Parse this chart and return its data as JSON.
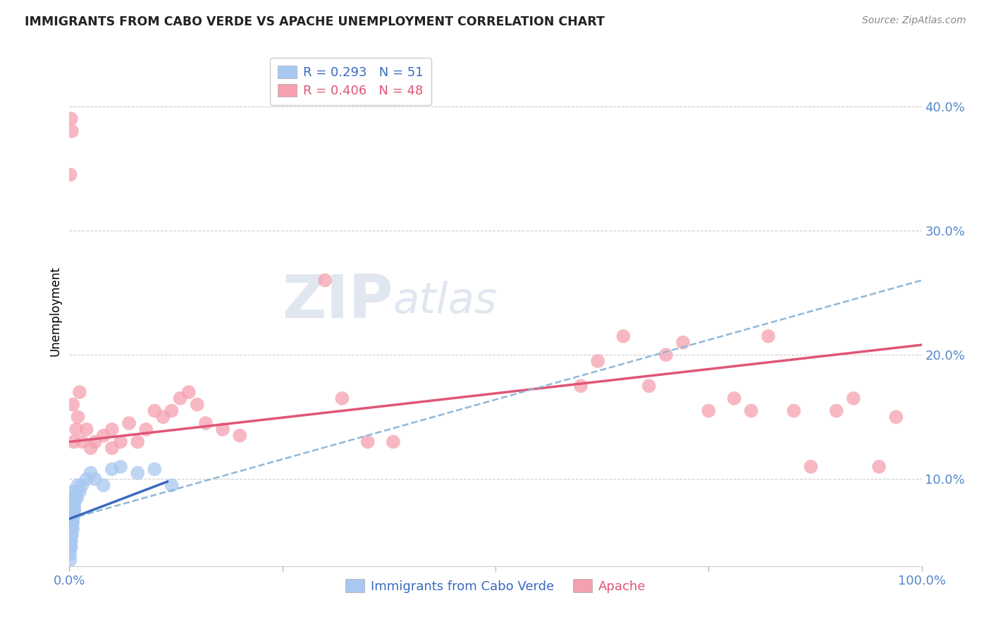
{
  "title": "IMMIGRANTS FROM CABO VERDE VS APACHE UNEMPLOYMENT CORRELATION CHART",
  "source": "Source: ZipAtlas.com",
  "ylabel": "Unemployment",
  "xlim": [
    0.0,
    1.0
  ],
  "ylim": [
    0.03,
    0.44
  ],
  "xticks": [
    0.0,
    0.25,
    0.5,
    0.75,
    1.0
  ],
  "xticklabels": [
    "0.0%",
    "",
    "",
    "",
    "100.0%"
  ],
  "yticks": [
    0.1,
    0.2,
    0.3,
    0.4
  ],
  "yticklabels": [
    "10.0%",
    "20.0%",
    "30.0%",
    "40.0%"
  ],
  "legend_line1": "R = 0.293   N = 51",
  "legend_line2": "R = 0.406   N = 48",
  "blue_color": "#a8c8f0",
  "pink_color": "#f5a0b0",
  "blue_line_color": "#3a6abf",
  "pink_line_color": "#e05575",
  "dashed_line_color": "#90b8d8",
  "watermark_zip": "ZIP",
  "watermark_atlas": "atlas",
  "blue_x": [
    0.001,
    0.001,
    0.001,
    0.001,
    0.001,
    0.001,
    0.001,
    0.001,
    0.001,
    0.001,
    0.002,
    0.002,
    0.002,
    0.002,
    0.002,
    0.002,
    0.002,
    0.002,
    0.002,
    0.003,
    0.003,
    0.003,
    0.003,
    0.003,
    0.003,
    0.003,
    0.004,
    0.004,
    0.004,
    0.004,
    0.004,
    0.005,
    0.005,
    0.005,
    0.006,
    0.006,
    0.007,
    0.008,
    0.009,
    0.01,
    0.012,
    0.015,
    0.02,
    0.025,
    0.03,
    0.04,
    0.05,
    0.06,
    0.08,
    0.1,
    0.12
  ],
  "blue_y": [
    0.055,
    0.06,
    0.065,
    0.07,
    0.075,
    0.05,
    0.045,
    0.04,
    0.035,
    0.08,
    0.06,
    0.065,
    0.07,
    0.075,
    0.055,
    0.05,
    0.045,
    0.08,
    0.085,
    0.065,
    0.07,
    0.075,
    0.08,
    0.06,
    0.055,
    0.09,
    0.07,
    0.075,
    0.08,
    0.065,
    0.06,
    0.075,
    0.08,
    0.07,
    0.08,
    0.075,
    0.085,
    0.09,
    0.085,
    0.095,
    0.09,
    0.095,
    0.1,
    0.105,
    0.1,
    0.095,
    0.108,
    0.11,
    0.105,
    0.108,
    0.095
  ],
  "pink_x": [
    0.001,
    0.002,
    0.003,
    0.004,
    0.005,
    0.008,
    0.01,
    0.012,
    0.015,
    0.02,
    0.025,
    0.03,
    0.04,
    0.05,
    0.08,
    0.1,
    0.12,
    0.15,
    0.3,
    0.32,
    0.35,
    0.38,
    0.6,
    0.62,
    0.65,
    0.68,
    0.7,
    0.72,
    0.75,
    0.78,
    0.8,
    0.82,
    0.85,
    0.87,
    0.9,
    0.92,
    0.95,
    0.97,
    0.05,
    0.06,
    0.07,
    0.09,
    0.11,
    0.13,
    0.14,
    0.16,
    0.18,
    0.2
  ],
  "pink_y": [
    0.345,
    0.39,
    0.38,
    0.16,
    0.13,
    0.14,
    0.15,
    0.17,
    0.13,
    0.14,
    0.125,
    0.13,
    0.135,
    0.14,
    0.13,
    0.155,
    0.155,
    0.16,
    0.26,
    0.165,
    0.13,
    0.13,
    0.175,
    0.195,
    0.215,
    0.175,
    0.2,
    0.21,
    0.155,
    0.165,
    0.155,
    0.215,
    0.155,
    0.11,
    0.155,
    0.165,
    0.11,
    0.15,
    0.125,
    0.13,
    0.145,
    0.14,
    0.15,
    0.165,
    0.17,
    0.145,
    0.14,
    0.135
  ],
  "blue_trend_x": [
    0.0,
    0.115
  ],
  "blue_trend_y": [
    0.068,
    0.098
  ],
  "pink_trend_x": [
    0.0,
    1.0
  ],
  "pink_trend_y": [
    0.13,
    0.208
  ],
  "dashed_trend_x": [
    0.0,
    1.0
  ],
  "dashed_trend_y": [
    0.068,
    0.26
  ]
}
